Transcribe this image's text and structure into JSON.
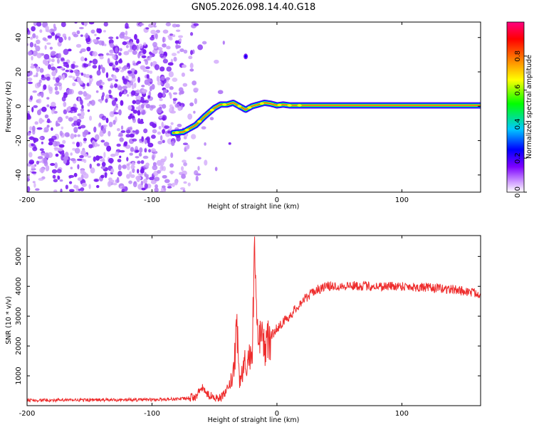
{
  "chart_data": [
    {
      "type": "heatmap",
      "title": "GN05.2026.098.14.40.G18",
      "xlabel": "Height of straight line (km)",
      "ylabel": "Frequency (Hz)",
      "xlim": [
        -200,
        163
      ],
      "ylim": [
        -50,
        49
      ],
      "xticks": [
        -200,
        -100,
        0,
        100
      ],
      "yticks": [
        -40,
        -20,
        0,
        20,
        40
      ],
      "colorbar": {
        "label": "Normalized spectral amplitude",
        "range": [
          0,
          1
        ],
        "ticks": [
          "0.0",
          "0.2",
          "0.4",
          "0.6",
          "0.8"
        ],
        "colors": [
          "#ffffff",
          "#cf9cff",
          "#7c00ff",
          "#0000ff",
          "#00c8ff",
          "#00ff00",
          "#ffff00",
          "#ff8000",
          "#ff0000",
          "#ff0080"
        ]
      },
      "ridge": {
        "x": [
          -83,
          -75,
          -70,
          -65,
          -58,
          -50,
          -45,
          -40,
          -35,
          -30,
          -25,
          -20,
          -15,
          -10,
          -5,
          0,
          5,
          10,
          20,
          40,
          80,
          120,
          163
        ],
        "y": [
          -15.5,
          -15,
          -13,
          -11,
          -6,
          -1,
          1,
          1,
          2,
          0,
          -2,
          0,
          1,
          2,
          1.5,
          0.5,
          1,
          0.5,
          0.5,
          0.5,
          0.5,
          0.5,
          0.5
        ]
      },
      "noise_region_x": [
        -200,
        -55
      ],
      "outlier_blob": {
        "x": -25,
        "y": 29
      }
    },
    {
      "type": "line",
      "xlabel": "Height of straight line (km)",
      "ylabel": "SNR (10 * v/v)",
      "xlim": [
        -200,
        163
      ],
      "ylim": [
        0,
        5700
      ],
      "xticks": [
        -200,
        -100,
        0,
        100
      ],
      "yticks": [
        1000,
        2000,
        3000,
        4000,
        5000
      ],
      "series": [
        {
          "name": "SNR",
          "color": "#ee2c2c",
          "x": [
            -200,
            -150,
            -100,
            -75,
            -65,
            -60,
            -55,
            -45,
            -40,
            -35,
            -32,
            -30,
            -25,
            -20,
            -17,
            -15,
            -13,
            -10,
            -5,
            0,
            5,
            10,
            20,
            30,
            40,
            60,
            80,
            100,
            120,
            140,
            163
          ],
          "y": [
            180,
            190,
            200,
            230,
            300,
            600,
            350,
            250,
            500,
            1000,
            2500,
            800,
            1500,
            1700,
            5650,
            1800,
            2300,
            2000,
            2300,
            2600,
            2800,
            3000,
            3500,
            3850,
            4000,
            4020,
            4000,
            4010,
            3950,
            3900,
            3750
          ]
        }
      ]
    }
  ]
}
